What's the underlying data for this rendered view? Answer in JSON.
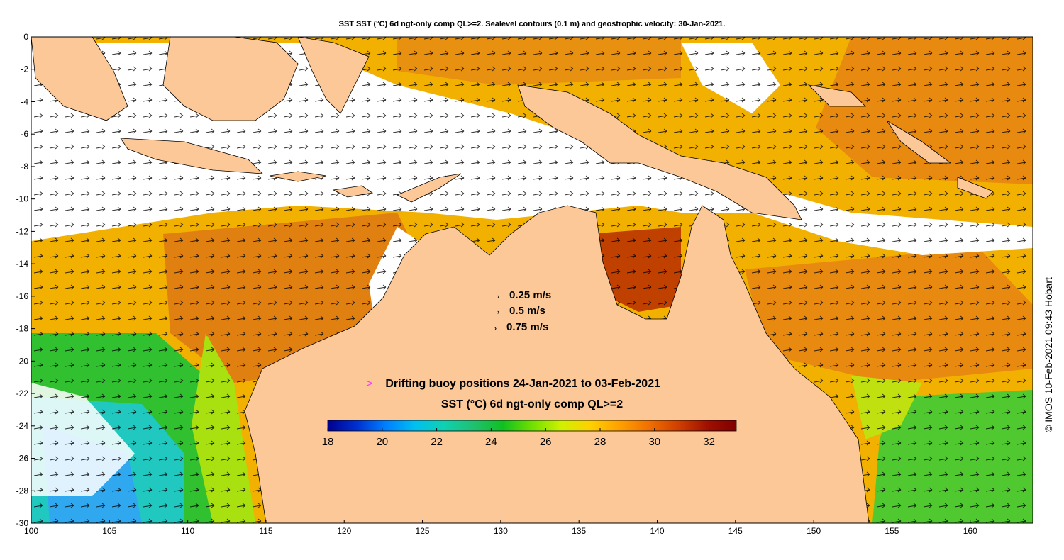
{
  "title": "SST SST (°C) 6d ngt-only comp QL>=2. Sealevel contours (0.1 m) and geostrophic velocity: 30-Jan-2021.",
  "credit": "© IMOS 10-Feb-2021 09:43 Hobart",
  "axes": {
    "x_ticks": [
      "100",
      "105",
      "110",
      "115",
      "120",
      "125",
      "130",
      "135",
      "140",
      "145",
      "150",
      "155",
      "160"
    ],
    "y_ticks": [
      "0",
      "-2",
      "-4",
      "-6",
      "-8",
      "-10",
      "-12",
      "-14",
      "-16",
      "-18",
      "-20",
      "-22",
      "-24",
      "-26",
      "-28",
      "-30"
    ],
    "lon_range": [
      100,
      164
    ],
    "lat_range": [
      -30,
      0
    ]
  },
  "velocity_scale": [
    {
      "label": "0.25 m/s"
    },
    {
      "label": "0.5 m/s"
    },
    {
      "label": "0.75 m/s"
    }
  ],
  "buoy": {
    "glyph": ">",
    "label": "Drifting buoy positions 24-Jan-2021 to 03-Feb-2021",
    "color": "#ff33ff"
  },
  "colorbar": {
    "title": "SST (°C) 6d ngt-only comp QL>=2",
    "range": [
      18,
      33
    ],
    "ticks": [
      "18",
      "20",
      "22",
      "24",
      "26",
      "28",
      "30",
      "32"
    ],
    "colors": [
      "#00008f",
      "#0030d0",
      "#0080ff",
      "#00c0f0",
      "#10d0b0",
      "#20c070",
      "#10c020",
      "#70e000",
      "#d0f000",
      "#ffd000",
      "#ffa000",
      "#f07000",
      "#d04000",
      "#a01000",
      "#800000"
    ]
  },
  "colors": {
    "land": "#fcc898",
    "coast": "#000000",
    "missing": "#ffffff"
  }
}
